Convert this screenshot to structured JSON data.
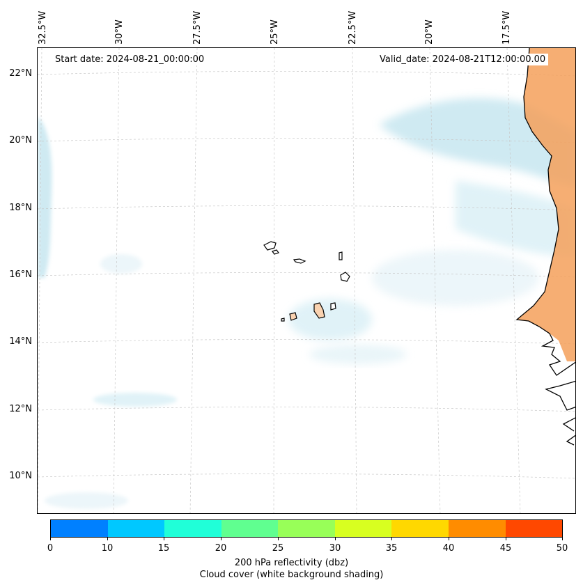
{
  "map": {
    "start_date": "Start date: 2024-08-21_00:00:00",
    "valid_date": "Valid_date: 2024-08-21T12:00:00.00",
    "lon_labels": [
      "32.5°W",
      "30°W",
      "27.5°W",
      "25°W",
      "22.5°W",
      "20°W",
      "17.5°W"
    ],
    "lat_labels": [
      "22°N",
      "20°N",
      "18°N",
      "16°N",
      "14°N",
      "12°N",
      "10°N"
    ],
    "land_color": "#f5a05a",
    "cloud_color": "#bfe3ee"
  },
  "colorbar": {
    "ticks": [
      "0",
      "10",
      "15",
      "20",
      "25",
      "30",
      "35",
      "40",
      "45",
      "50"
    ],
    "colors": [
      "#0080ff",
      "#00c8ff",
      "#20ffd8",
      "#60ff90",
      "#98ff58",
      "#d8ff20",
      "#ffd800",
      "#ff8c00",
      "#ff4800"
    ],
    "label_line1": "200 hPa reflectivity (dbz)",
    "label_line2": "Cloud cover (white background shading)"
  }
}
